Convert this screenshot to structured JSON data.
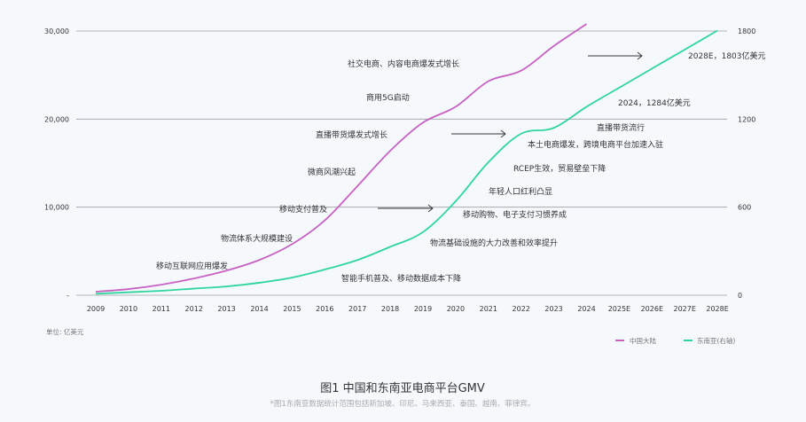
{
  "chart_data": {
    "type": "line",
    "title": "图1 中国和东南亚电商平台GMV",
    "note": "*图1东南亚数据统计范围包括新加坡、印尼、马来西亚、泰国、越南、菲律宾。",
    "unit": "单位: 亿美元",
    "categories": [
      "2009",
      "2010",
      "2011",
      "2012",
      "2013",
      "2014",
      "2015",
      "2016",
      "2017",
      "2018",
      "2019",
      "2020",
      "2021",
      "2022",
      "2023",
      "2024",
      "2025E",
      "2026E",
      "2027E",
      "2028E"
    ],
    "y_left": {
      "range": [
        0,
        30000
      ],
      "ticks": [
        "-",
        "10,000",
        "20,000",
        "30,000"
      ],
      "tick_values": [
        0,
        10000,
        20000,
        30000
      ]
    },
    "y_right": {
      "range": [
        0,
        1800
      ],
      "ticks": [
        "0",
        "600",
        "1200",
        "1800"
      ],
      "tick_values": [
        0,
        600,
        1200,
        1800
      ]
    },
    "grid": true,
    "legend_position": "bottom-right",
    "series": [
      {
        "name": "中国大陆",
        "axis": "left",
        "color": "#c861c4",
        "values": [
          400,
          700,
          1200,
          1900,
          2800,
          4000,
          5800,
          8500,
          12400,
          16400,
          19600,
          21400,
          24300,
          25500,
          28300,
          30800,
          null,
          null,
          null,
          null
        ]
      },
      {
        "name": "东南亚(右轴)",
        "axis": "right",
        "color": "#2fd59a",
        "values": [
          10,
          20,
          30,
          45,
          60,
          85,
          120,
          175,
          240,
          330,
          430,
          640,
          906,
          1100,
          1140,
          1284,
          1414,
          1544,
          1673,
          1803
        ]
      }
    ],
    "annotations": {
      "china": [
        "社交电商、内容电商爆发式增长",
        "商用5G启动",
        "直播带货爆发式增长",
        "微商风潮兴起",
        "移动支付普及",
        "物流体系大规模建设",
        "移动互联网应用爆发"
      ],
      "sea": [
        "智能手机普及、移动数据成本下降",
        "物流基础设施的大力改善和效率提升",
        "移动购物、电子支付习惯养成",
        "年轻人口红利凸显",
        "RCEP生效，贸易壁垒下降",
        "本土电商爆发，跨境电商平台加速入驻",
        "直播带货流行",
        "2024，1284亿美元",
        "2028E，1803亿美元"
      ]
    }
  }
}
